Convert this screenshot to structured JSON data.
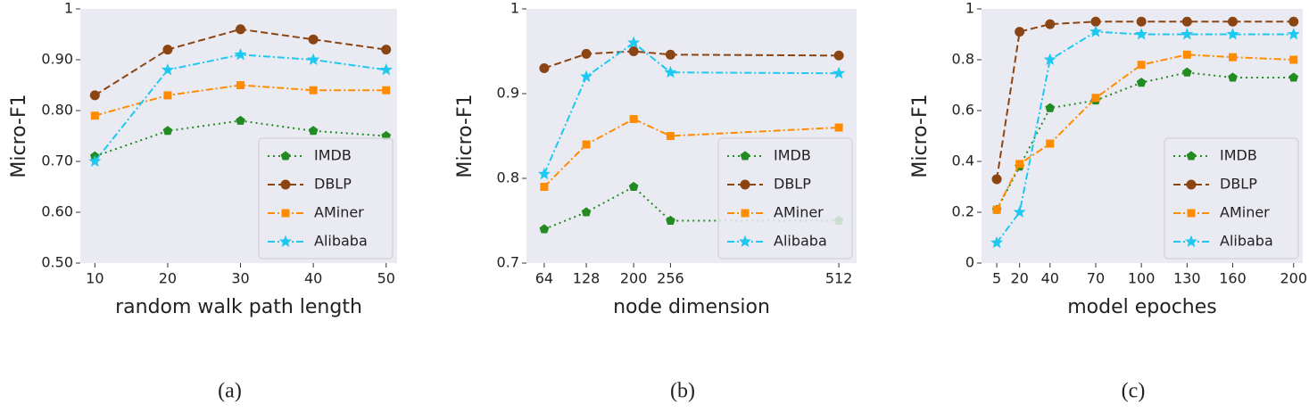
{
  "chart_data": [
    {
      "type": "line",
      "caption": "(a)",
      "xlabel": "random walk path length",
      "ylabel": "Micro-F1",
      "x": [
        10,
        20,
        30,
        40,
        50
      ],
      "xlim": [
        8,
        51.5
      ],
      "xticks": [
        10,
        20,
        30,
        40,
        50
      ],
      "ylim": [
        0.5,
        1
      ],
      "yticks": [
        {
          "value": 0.5,
          "label": "0.50"
        },
        {
          "value": 0.6,
          "label": "0.60"
        },
        {
          "value": 0.7,
          "label": "0.70"
        },
        {
          "value": 0.8,
          "label": "0.80"
        },
        {
          "value": 0.9,
          "label": "0.90"
        },
        1
      ],
      "legend": "lower right",
      "series": [
        {
          "name": "IMDB",
          "color": "#228b22",
          "linestyle": "dotted",
          "marker": "pentagon",
          "values": [
            0.71,
            0.76,
            0.78,
            0.76,
            0.75
          ]
        },
        {
          "name": "DBLP",
          "color": "#8b4513",
          "linestyle": "dashed",
          "marker": "circle",
          "values": [
            0.83,
            0.92,
            0.96,
            0.94,
            0.92
          ]
        },
        {
          "name": "AMiner",
          "color": "#ff8c00",
          "linestyle": "dashdot",
          "marker": "square",
          "values": [
            0.79,
            0.83,
            0.85,
            0.84,
            0.84
          ]
        },
        {
          "name": "Alibaba",
          "color": "#1ec8f0",
          "linestyle": "dashdot",
          "marker": "star",
          "values": [
            0.7,
            0.88,
            0.91,
            0.9,
            0.88
          ]
        }
      ]
    },
    {
      "type": "line",
      "caption": "(b)",
      "xlabel": "node dimension",
      "ylabel": "Micro-F1",
      "x": [
        64,
        128,
        200,
        256,
        512
      ],
      "xlim": [
        37,
        539
      ],
      "xticks": [
        64,
        128,
        200,
        256,
        512
      ],
      "ylim": [
        0.7,
        1
      ],
      "yticks": [
        0.7,
        0.8,
        0.9,
        1
      ],
      "legend": "lower right",
      "series": [
        {
          "name": "IMDB",
          "color": "#228b22",
          "linestyle": "dotted",
          "marker": "pentagon",
          "values": [
            0.74,
            0.76,
            0.79,
            0.75,
            0.75
          ]
        },
        {
          "name": "DBLP",
          "color": "#8b4513",
          "linestyle": "dashed",
          "marker": "circle",
          "values": [
            0.93,
            0.947,
            0.95,
            0.946,
            0.945
          ]
        },
        {
          "name": "AMiner",
          "color": "#ff8c00",
          "linestyle": "dashdot",
          "marker": "square",
          "values": [
            0.79,
            0.84,
            0.87,
            0.85,
            0.86
          ]
        },
        {
          "name": "Alibaba",
          "color": "#1ec8f0",
          "linestyle": "dashdot",
          "marker": "star",
          "values": [
            0.805,
            0.92,
            0.96,
            0.925,
            0.924
          ]
        }
      ]
    },
    {
      "type": "line",
      "caption": "(c)",
      "xlabel": "model epoches",
      "ylabel": "Micro-F1",
      "x": [
        5,
        20,
        40,
        70,
        100,
        130,
        160,
        200
      ],
      "xlim": [
        -5,
        206
      ],
      "xticks": [
        5,
        20,
        40,
        70,
        100,
        130,
        160,
        200
      ],
      "ylim": [
        0,
        1
      ],
      "yticks": [
        0,
        0.2,
        0.4,
        0.6,
        0.8,
        1
      ],
      "legend": "lower right",
      "series": [
        {
          "name": "IMDB",
          "color": "#228b22",
          "linestyle": "dotted",
          "marker": "pentagon",
          "values": [
            0.21,
            0.38,
            0.61,
            0.64,
            0.71,
            0.75,
            0.73,
            0.73
          ]
        },
        {
          "name": "DBLP",
          "color": "#8b4513",
          "linestyle": "dashed",
          "marker": "circle",
          "values": [
            0.33,
            0.91,
            0.94,
            0.95,
            0.95,
            0.95,
            0.95,
            0.95
          ]
        },
        {
          "name": "AMiner",
          "color": "#ff8c00",
          "linestyle": "dashdot",
          "marker": "square",
          "values": [
            0.21,
            0.39,
            0.47,
            0.65,
            0.78,
            0.82,
            0.81,
            0.8
          ]
        },
        {
          "name": "Alibaba",
          "color": "#1ec8f0",
          "linestyle": "dashdot",
          "marker": "star",
          "values": [
            0.08,
            0.2,
            0.8,
            0.91,
            0.9,
            0.9,
            0.9,
            0.9
          ]
        }
      ]
    }
  ]
}
